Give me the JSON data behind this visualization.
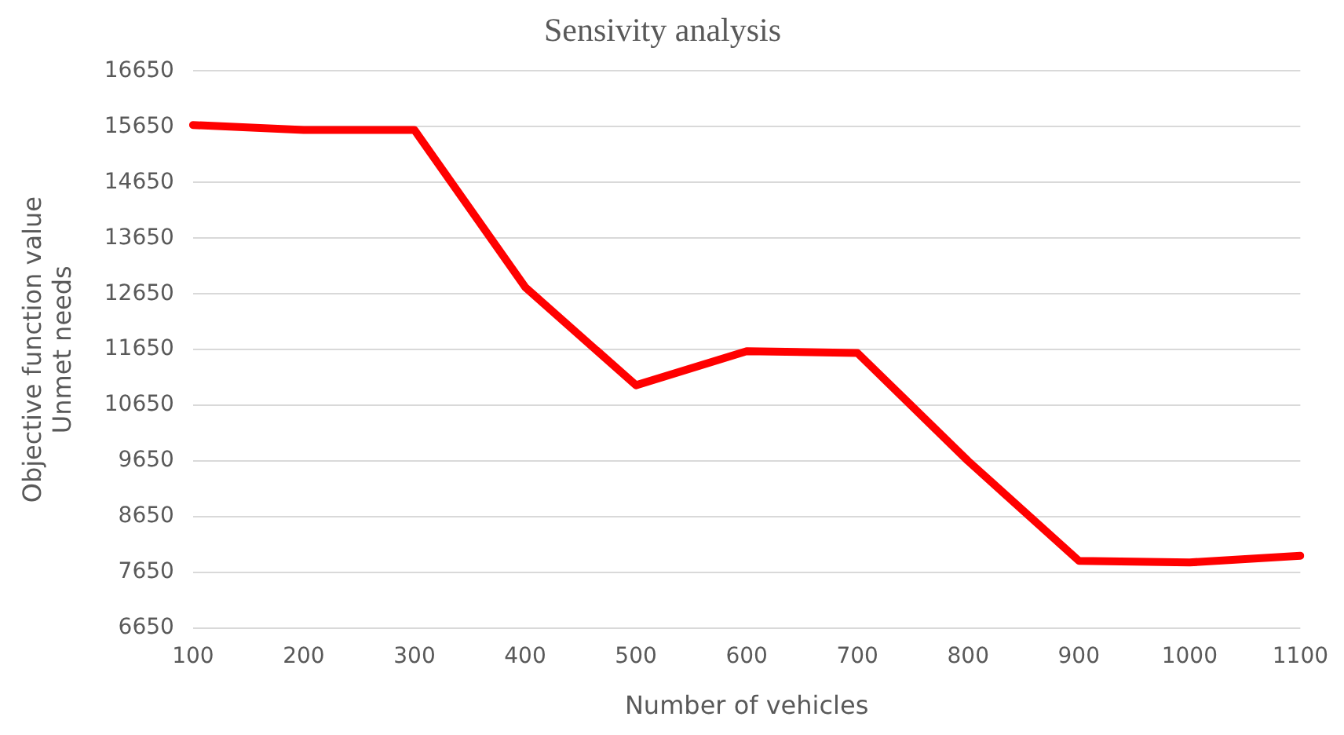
{
  "chart_data": {
    "type": "line",
    "title": "Sensivity analysis",
    "xlabel": "Number of vehicles",
    "ylabel": "Objective function value\nUnmet needs",
    "categories": [
      "100",
      "200",
      "300",
      "400",
      "500",
      "600",
      "700",
      "800",
      "900",
      "1000",
      "1100"
    ],
    "series": [
      {
        "color": "#ff0000",
        "values": [
          15680,
          15590,
          15590,
          12770,
          11010,
          11620,
          11590,
          9650,
          7860,
          7830,
          7950
        ]
      }
    ],
    "ylim": [
      6650,
      16650
    ],
    "yticks": [
      6650,
      7650,
      8650,
      9650,
      10650,
      11650,
      12650,
      13650,
      14650,
      15650,
      16650
    ],
    "grid": "y",
    "legend": false,
    "marker": "none",
    "line_style": "solid"
  }
}
